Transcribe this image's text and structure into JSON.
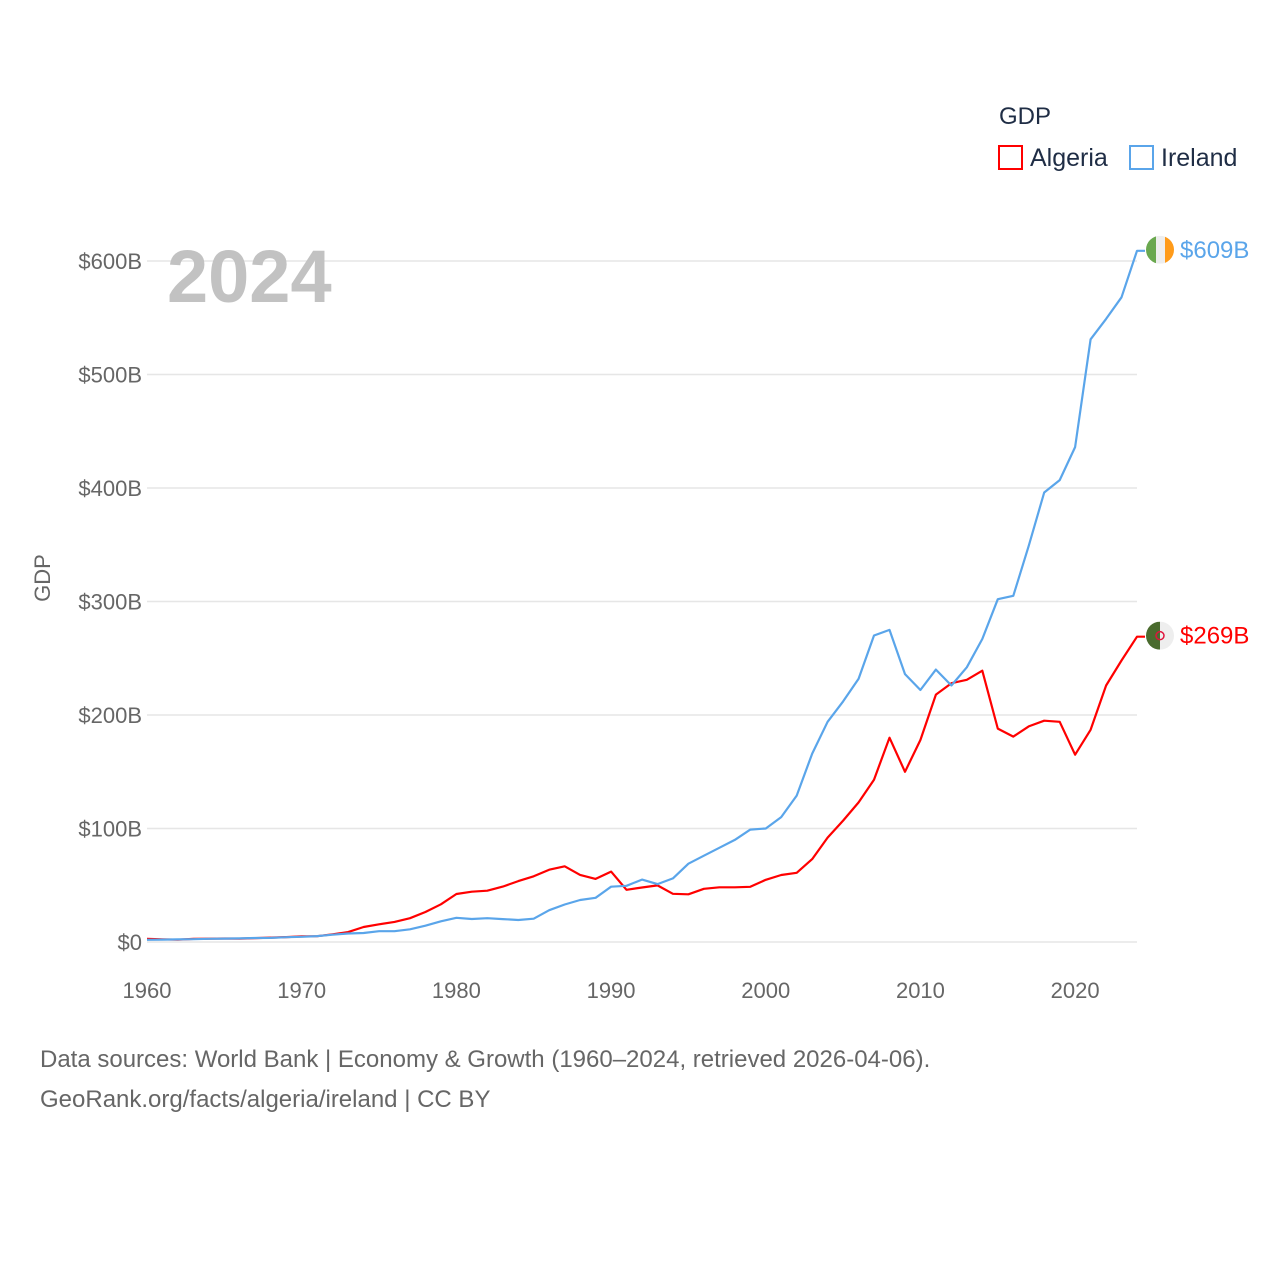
{
  "chart_data": {
    "type": "line",
    "title": "GDP",
    "watermark_year": "2024",
    "ylabel": "GDP",
    "xlabel": "",
    "xlim": [
      1960,
      2024
    ],
    "ylim": [
      0,
      600
    ],
    "x_ticks": [
      "1960",
      "1970",
      "1980",
      "1990",
      "2000",
      "2010",
      "2020"
    ],
    "y_ticks": [
      "$0",
      "$100B",
      "$200B",
      "$300B",
      "$400B",
      "$500B",
      "$600B"
    ],
    "y_tick_values": [
      0,
      100,
      200,
      300,
      400,
      500,
      600
    ],
    "grid": true,
    "legend_placement": "top-right",
    "legend_title": "GDP",
    "x": [
      1960,
      1961,
      1962,
      1963,
      1964,
      1965,
      1966,
      1967,
      1968,
      1969,
      1970,
      1971,
      1972,
      1973,
      1974,
      1975,
      1976,
      1977,
      1978,
      1979,
      1980,
      1981,
      1982,
      1983,
      1984,
      1985,
      1986,
      1987,
      1988,
      1989,
      1990,
      1991,
      1992,
      1993,
      1994,
      1995,
      1996,
      1997,
      1998,
      1999,
      2000,
      2001,
      2002,
      2003,
      2004,
      2005,
      2006,
      2007,
      2008,
      2009,
      2010,
      2011,
      2012,
      2013,
      2014,
      2015,
      2016,
      2017,
      2018,
      2019,
      2020,
      2021,
      2022,
      2023,
      2024
    ],
    "series": [
      {
        "name": "Algeria",
        "color": "#ff0000",
        "end_label": "$269B",
        "flag": "algeria-flag",
        "values": [
          2.7,
          2.4,
          2.0,
          2.7,
          2.9,
          3.1,
          3.0,
          3.4,
          3.9,
          4.3,
          4.9,
          5.1,
          6.8,
          8.7,
          13.2,
          15.6,
          17.7,
          21.0,
          26.4,
          33.2,
          42.3,
          44.3,
          45.2,
          48.8,
          53.7,
          57.9,
          63.7,
          66.7,
          59.1,
          55.6,
          62.0,
          46.0,
          48.0,
          49.9,
          42.5,
          42.0,
          46.9,
          48.2,
          48.2,
          48.6,
          54.8,
          59.0,
          61.0,
          73.0,
          92.0,
          107.0,
          123.0,
          143.0,
          180.0,
          150.0,
          178.0,
          218.0,
          228.0,
          231.0,
          239.0,
          188.0,
          181.0,
          190.0,
          195.0,
          194.0,
          165.0,
          187.0,
          226.0,
          248.0,
          269.0
        ]
      },
      {
        "name": "Ireland",
        "color": "#5aa5ea",
        "end_label": "$609B",
        "flag": "ireland-flag",
        "values": [
          1.9,
          2.1,
          2.3,
          2.5,
          2.8,
          3.0,
          3.2,
          3.5,
          3.6,
          4.2,
          4.6,
          5.2,
          6.4,
          7.5,
          7.9,
          9.5,
          9.5,
          11.2,
          14.4,
          18.2,
          21.3,
          20.3,
          21.0,
          20.2,
          19.4,
          20.5,
          28.0,
          33.0,
          37.0,
          38.9,
          48.7,
          49.5,
          55.0,
          51.0,
          56.0,
          69.0,
          76.0,
          83.0,
          90.0,
          99.0,
          100.0,
          110.0,
          129.0,
          166.0,
          194.0,
          212.0,
          232.0,
          270.0,
          275.0,
          236.0,
          222.0,
          240.0,
          226.0,
          242.0,
          267.0,
          302.0,
          305.0,
          349.0,
          396.0,
          407.0,
          436.0,
          531.0,
          549.0,
          568.0,
          609.0
        ]
      }
    ]
  },
  "footer": {
    "line1": "Data sources: World Bank | Economy & Growth (1960–2024, retrieved 2026-04-06).",
    "line2": "GeoRank.org/facts/algeria/ireland | CC BY"
  }
}
